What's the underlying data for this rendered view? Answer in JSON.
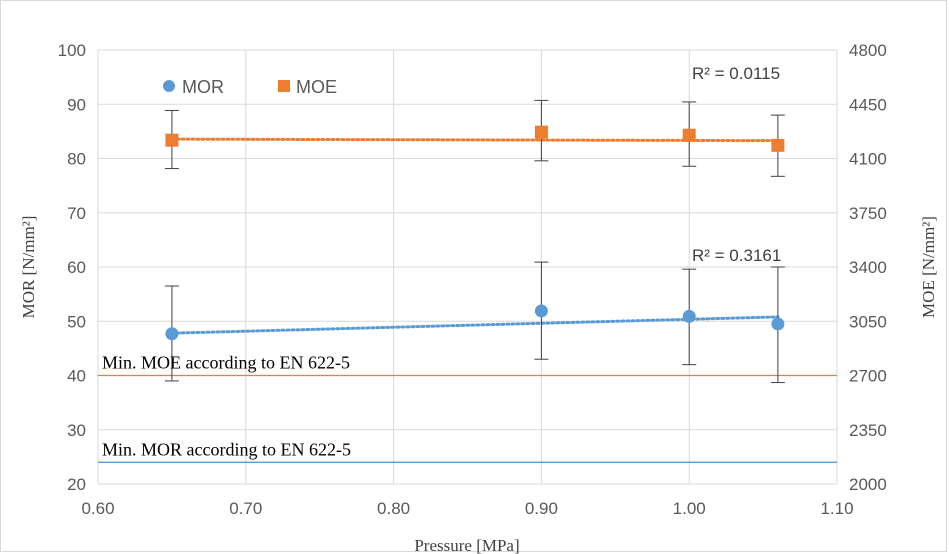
{
  "chart_data": {
    "type": "scatter",
    "xlabel": "Pressure [MPa]",
    "ylabel_left": "MOR [N/mm²]",
    "ylabel_right": "MOE [N/mm²]",
    "xlim": [
      0.6,
      1.1
    ],
    "ylim_left": [
      20,
      100
    ],
    "ylim_right": [
      2000,
      4800
    ],
    "x_ticks": [
      "0.60",
      "0.70",
      "0.80",
      "0.90",
      "1.00",
      "1.10"
    ],
    "y_ticks_left": [
      "20",
      "30",
      "40",
      "50",
      "60",
      "70",
      "80",
      "90",
      "100"
    ],
    "y_ticks_right": [
      "2000",
      "2350",
      "2700",
      "3050",
      "3400",
      "3750",
      "4100",
      "4450",
      "4800"
    ],
    "grid": true,
    "legend_position": "top-left",
    "series": [
      {
        "name": "MOR",
        "axis": "left",
        "marker": "circle",
        "color": "#5b9bd5",
        "x": [
          0.65,
          0.9,
          1.0,
          1.06
        ],
        "y": [
          47.7,
          51.9,
          50.9,
          49.5
        ],
        "err_low": [
          39.0,
          43.0,
          42.0,
          38.7
        ],
        "err_high": [
          56.5,
          60.9,
          59.6,
          60.0
        ],
        "trendline": {
          "type": "linear",
          "r2_label": "R² = 0.3161",
          "y_start": 47.8,
          "y_end": 50.8
        }
      },
      {
        "name": "MOE",
        "axis": "right",
        "marker": "square",
        "color": "#ed7d31",
        "x": [
          0.65,
          0.9,
          1.0,
          1.06
        ],
        "y": [
          4218,
          4270,
          4250,
          4185
        ],
        "err_low": [
          4035,
          4085,
          4050,
          3985
        ],
        "err_high": [
          4410,
          4475,
          4465,
          4380
        ],
        "trendline": {
          "type": "linear",
          "r2_label": "R² = 0.0115",
          "y_start": 4225,
          "y_end": 4215
        }
      }
    ],
    "reference_lines": [
      {
        "label": "Min. MOE according to EN 622-5",
        "axis": "right",
        "value": 2700,
        "color": "#ed7d31"
      },
      {
        "label": "Min. MOR according to EN 622-5",
        "axis": "left",
        "value": 24,
        "color": "#5b9bd5"
      }
    ]
  }
}
